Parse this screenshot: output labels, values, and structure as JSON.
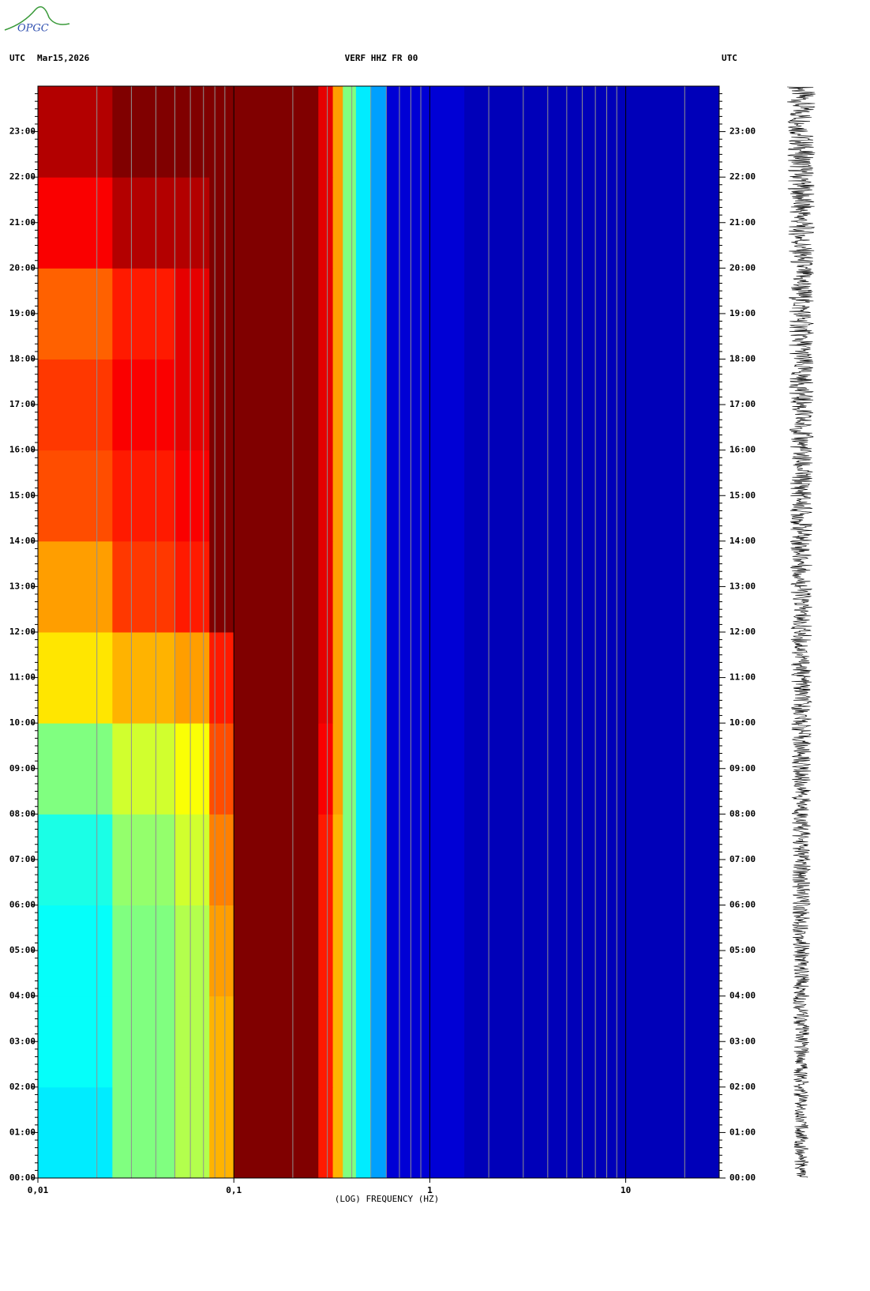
{
  "logo": "OPGC",
  "header": {
    "left_zone": "UTC",
    "date": "Mar15,2026",
    "station": "VERF HHZ FR 00",
    "right_zone": "UTC"
  },
  "chart_data": {
    "type": "heatmap",
    "xlabel": "(LOG) FREQUENCY (HZ)",
    "xscale": "log",
    "xlim": [
      0.01,
      30
    ],
    "xticks": [
      {
        "value": 0.01,
        "label": "0,01"
      },
      {
        "value": 0.1,
        "label": "0,1"
      },
      {
        "value": 1,
        "label": "1"
      },
      {
        "value": 10,
        "label": "10"
      }
    ],
    "x_minor_grid": [
      0.02,
      0.03,
      0.04,
      0.05,
      0.06,
      0.07,
      0.08,
      0.09,
      0.2,
      0.3,
      0.4,
      0.5,
      0.6,
      0.7,
      0.8,
      0.9,
      2,
      3,
      4,
      5,
      6,
      7,
      8,
      9,
      20
    ],
    "ylim": [
      0,
      24
    ],
    "yticks": [
      {
        "value": 0,
        "label": "00:00"
      },
      {
        "value": 1,
        "label": "01:00"
      },
      {
        "value": 2,
        "label": "02:00"
      },
      {
        "value": 3,
        "label": "03:00"
      },
      {
        "value": 4,
        "label": "04:00"
      },
      {
        "value": 5,
        "label": "05:00"
      },
      {
        "value": 6,
        "label": "06:00"
      },
      {
        "value": 7,
        "label": "07:00"
      },
      {
        "value": 8,
        "label": "08:00"
      },
      {
        "value": 9,
        "label": "09:00"
      },
      {
        "value": 10,
        "label": "10:00"
      },
      {
        "value": 11,
        "label": "11:00"
      },
      {
        "value": 12,
        "label": "12:00"
      },
      {
        "value": 13,
        "label": "13:00"
      },
      {
        "value": 14,
        "label": "14:00"
      },
      {
        "value": 15,
        "label": "15:00"
      },
      {
        "value": 16,
        "label": "16:00"
      },
      {
        "value": 17,
        "label": "17:00"
      },
      {
        "value": 18,
        "label": "18:00"
      },
      {
        "value": 19,
        "label": "19:00"
      },
      {
        "value": 20,
        "label": "20:00"
      },
      {
        "value": 21,
        "label": "21:00"
      },
      {
        "value": 22,
        "label": "22:00"
      },
      {
        "value": 23,
        "label": "23:00"
      }
    ],
    "x_edges": [
      0.01,
      0.024,
      0.05,
      0.075,
      0.1,
      0.27,
      0.32,
      0.36,
      0.42,
      0.5,
      0.6,
      1.5,
      30
    ],
    "y_edges": [
      0,
      2,
      4,
      6,
      8,
      10,
      12,
      14,
      16,
      18,
      20,
      22,
      24
    ],
    "zlim": [
      0,
      1
    ],
    "colormap": [
      "#00008b",
      "#0000ff",
      "#00a0ff",
      "#00ffff",
      "#80ff80",
      "#ffff00",
      "#ff8000",
      "#ff0000",
      "#800000"
    ],
    "z": [
      [
        0.35,
        0.5,
        0.55,
        0.7,
        1,
        0.85,
        0.7,
        0.5,
        0.35,
        0.25,
        0.08,
        0.05
      ],
      [
        0.38,
        0.5,
        0.55,
        0.7,
        1,
        0.85,
        0.7,
        0.5,
        0.35,
        0.25,
        0.08,
        0.05
      ],
      [
        0.38,
        0.5,
        0.55,
        0.72,
        1,
        0.85,
        0.7,
        0.5,
        0.35,
        0.25,
        0.08,
        0.05
      ],
      [
        0.4,
        0.52,
        0.58,
        0.75,
        1,
        0.85,
        0.7,
        0.5,
        0.35,
        0.25,
        0.08,
        0.05
      ],
      [
        0.5,
        0.58,
        0.62,
        0.8,
        1,
        0.88,
        0.72,
        0.5,
        0.35,
        0.25,
        0.08,
        0.05
      ],
      [
        0.65,
        0.7,
        0.72,
        0.85,
        1,
        0.9,
        0.72,
        0.5,
        0.35,
        0.25,
        0.08,
        0.05
      ],
      [
        0.72,
        0.82,
        0.85,
        1,
        1,
        0.9,
        0.72,
        0.5,
        0.35,
        0.25,
        0.08,
        0.05
      ],
      [
        0.8,
        0.85,
        0.88,
        1,
        1,
        0.9,
        0.72,
        0.5,
        0.35,
        0.25,
        0.08,
        0.05
      ],
      [
        0.82,
        0.88,
        0.9,
        1,
        1,
        0.9,
        0.72,
        0.5,
        0.35,
        0.25,
        0.08,
        0.05
      ],
      [
        0.78,
        0.85,
        0.9,
        1,
        1,
        0.9,
        0.72,
        0.5,
        0.35,
        0.25,
        0.08,
        0.05
      ],
      [
        0.88,
        0.95,
        0.95,
        1,
        1,
        0.9,
        0.72,
        0.5,
        0.35,
        0.25,
        0.08,
        0.05
      ],
      [
        0.95,
        1,
        1,
        1,
        1,
        0.9,
        0.72,
        0.5,
        0.35,
        0.25,
        0.08,
        0.05
      ]
    ]
  }
}
